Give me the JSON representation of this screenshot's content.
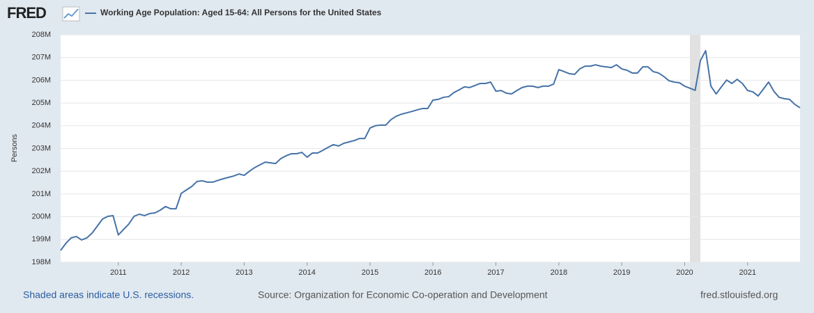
{
  "logo": "FRED",
  "footer": {
    "recession_note": "Shaded areas indicate U.S. recessions.",
    "source": "Source: Organization for Economic Co-operation and Development",
    "site": "fred.stlouisfed.org"
  },
  "chart_data": {
    "type": "line",
    "title": "Working Age Population: Aged 15-64: All Persons for the United States",
    "y_label": "Persons",
    "x": [
      "2010-02",
      "2010-03",
      "2010-04",
      "2010-05",
      "2010-06",
      "2010-07",
      "2010-08",
      "2010-09",
      "2010-10",
      "2010-11",
      "2010-12",
      "2011-01",
      "2011-02",
      "2011-03",
      "2011-04",
      "2011-05",
      "2011-06",
      "2011-07",
      "2011-08",
      "2011-09",
      "2011-10",
      "2011-11",
      "2011-12",
      "2012-01",
      "2012-02",
      "2012-03",
      "2012-04",
      "2012-05",
      "2012-06",
      "2012-07",
      "2012-08",
      "2012-09",
      "2012-10",
      "2012-11",
      "2012-12",
      "2013-01",
      "2013-02",
      "2013-03",
      "2013-04",
      "2013-05",
      "2013-06",
      "2013-07",
      "2013-08",
      "2013-09",
      "2013-10",
      "2013-11",
      "2013-12",
      "2014-01",
      "2014-02",
      "2014-03",
      "2014-04",
      "2014-05",
      "2014-06",
      "2014-07",
      "2014-08",
      "2014-09",
      "2014-10",
      "2014-11",
      "2014-12",
      "2015-01",
      "2015-02",
      "2015-03",
      "2015-04",
      "2015-05",
      "2015-06",
      "2015-07",
      "2015-08",
      "2015-09",
      "2015-10",
      "2015-11",
      "2015-12",
      "2016-01",
      "2016-02",
      "2016-03",
      "2016-04",
      "2016-05",
      "2016-06",
      "2016-07",
      "2016-08",
      "2016-09",
      "2016-10",
      "2016-11",
      "2016-12",
      "2017-01",
      "2017-02",
      "2017-03",
      "2017-04",
      "2017-05",
      "2017-06",
      "2017-07",
      "2017-08",
      "2017-09",
      "2017-10",
      "2017-11",
      "2017-12",
      "2018-01",
      "2018-02",
      "2018-03",
      "2018-04",
      "2018-05",
      "2018-06",
      "2018-07",
      "2018-08",
      "2018-09",
      "2018-10",
      "2018-11",
      "2018-12",
      "2019-01",
      "2019-02",
      "2019-03",
      "2019-04",
      "2019-05",
      "2019-06",
      "2019-07",
      "2019-08",
      "2019-09",
      "2019-10",
      "2019-11",
      "2019-12",
      "2020-01",
      "2020-02",
      "2020-03",
      "2020-04",
      "2020-05",
      "2020-06",
      "2020-07",
      "2020-08",
      "2020-09",
      "2020-10",
      "2020-11",
      "2020-12",
      "2021-01",
      "2021-02",
      "2021-03",
      "2021-04",
      "2021-05",
      "2021-06",
      "2021-07",
      "2021-08",
      "2021-09",
      "2021-10",
      "2021-11"
    ],
    "series": [
      {
        "name": "Working Age Population: Aged 15-64: All Persons for the United States",
        "color": "#4572a7",
        "values": [
          198520000,
          198830000,
          199070000,
          199130000,
          198980000,
          199070000,
          199280000,
          199590000,
          199900000,
          200020000,
          200050000,
          199200000,
          199440000,
          199680000,
          200020000,
          200110000,
          200050000,
          200140000,
          200170000,
          200290000,
          200450000,
          200350000,
          200350000,
          201030000,
          201180000,
          201330000,
          201550000,
          201580000,
          201520000,
          201520000,
          201600000,
          201670000,
          201730000,
          201790000,
          201880000,
          201820000,
          202000000,
          202160000,
          202280000,
          202400000,
          202370000,
          202340000,
          202560000,
          202680000,
          202770000,
          202770000,
          202830000,
          202620000,
          202800000,
          202800000,
          202920000,
          203050000,
          203170000,
          203110000,
          203230000,
          203290000,
          203350000,
          203440000,
          203440000,
          203900000,
          204000000,
          204030000,
          204030000,
          204270000,
          204420000,
          204510000,
          204570000,
          204630000,
          204700000,
          204760000,
          204760000,
          205130000,
          205160000,
          205250000,
          205280000,
          205460000,
          205580000,
          205710000,
          205680000,
          205770000,
          205860000,
          205860000,
          205920000,
          205520000,
          205550000,
          205430000,
          205400000,
          205550000,
          205680000,
          205740000,
          205740000,
          205680000,
          205740000,
          205740000,
          205830000,
          206470000,
          206380000,
          206290000,
          206260000,
          206500000,
          206620000,
          206620000,
          206680000,
          206620000,
          206590000,
          206560000,
          206680000,
          206500000,
          206440000,
          206320000,
          206320000,
          206590000,
          206590000,
          206380000,
          206320000,
          206170000,
          205980000,
          205920000,
          205890000,
          205740000,
          205650000,
          205560000,
          206870000,
          207300000,
          205740000,
          205400000,
          205710000,
          206010000,
          205860000,
          206040000,
          205860000,
          205550000,
          205490000,
          205310000,
          205610000,
          205920000,
          205520000,
          205250000,
          205190000,
          205160000,
          204940000,
          204790000
        ]
      }
    ],
    "recessions": [
      [
        "2020-02",
        "2020-04"
      ]
    ],
    "recession_color": "#e1e1e1",
    "xlim": [
      "2010-02",
      "2021-11"
    ],
    "xticks": [
      {
        "value": "2011-01",
        "label": "2011"
      },
      {
        "value": "2012-01",
        "label": "2012"
      },
      {
        "value": "2013-01",
        "label": "2013"
      },
      {
        "value": "2014-01",
        "label": "2014"
      },
      {
        "value": "2015-01",
        "label": "2015"
      },
      {
        "value": "2016-01",
        "label": "2016"
      },
      {
        "value": "2017-01",
        "label": "2017"
      },
      {
        "value": "2018-01",
        "label": "2018"
      },
      {
        "value": "2019-01",
        "label": "2019"
      },
      {
        "value": "2020-01",
        "label": "2020"
      },
      {
        "value": "2021-01",
        "label": "2021"
      }
    ],
    "ylim": [
      198000000,
      208000000
    ],
    "yticks": [
      {
        "value": 198000000,
        "label": "198M"
      },
      {
        "value": 199000000,
        "label": "199M"
      },
      {
        "value": 200000000,
        "label": "200M"
      },
      {
        "value": 201000000,
        "label": "201M"
      },
      {
        "value": 202000000,
        "label": "202M"
      },
      {
        "value": 203000000,
        "label": "203M"
      },
      {
        "value": 204000000,
        "label": "204M"
      },
      {
        "value": 205000000,
        "label": "205M"
      },
      {
        "value": 206000000,
        "label": "206M"
      },
      {
        "value": 207000000,
        "label": "207M"
      },
      {
        "value": 208000000,
        "label": "208M"
      }
    ],
    "grid": true
  }
}
